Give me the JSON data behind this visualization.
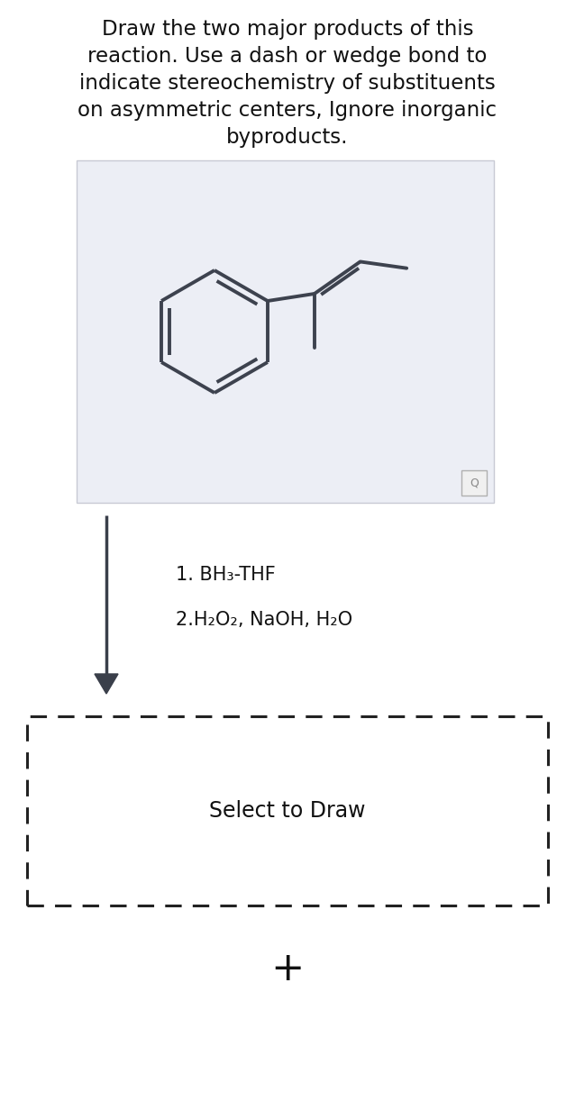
{
  "title_lines": [
    "Draw the two major products of this",
    "reaction. Use a dash or wedge bond to",
    "indicate stereochemistry of substituents",
    "on asymmetric centers, Ignore inorganic",
    "byproducts."
  ],
  "title_fontsize": 16.5,
  "bg_color": "#ffffff",
  "molecule_box_color": "#eceef5",
  "molecule_box_border": "#c8cad4",
  "reaction_label1": "1. BH₃-THF",
  "reaction_label2": "2.H₂O₂, NaOH, H₂O",
  "select_to_draw": "Select to Draw",
  "plus_sign": "+",
  "arrow_color": "#3a3f4a",
  "bond_color": "#3d424e",
  "bond_lw": 2.8,
  "dashed_border_color": "#222222",
  "text_color": "#111111",
  "label_fontsize": 15,
  "select_fontsize": 17,
  "plus_fontsize": 32
}
